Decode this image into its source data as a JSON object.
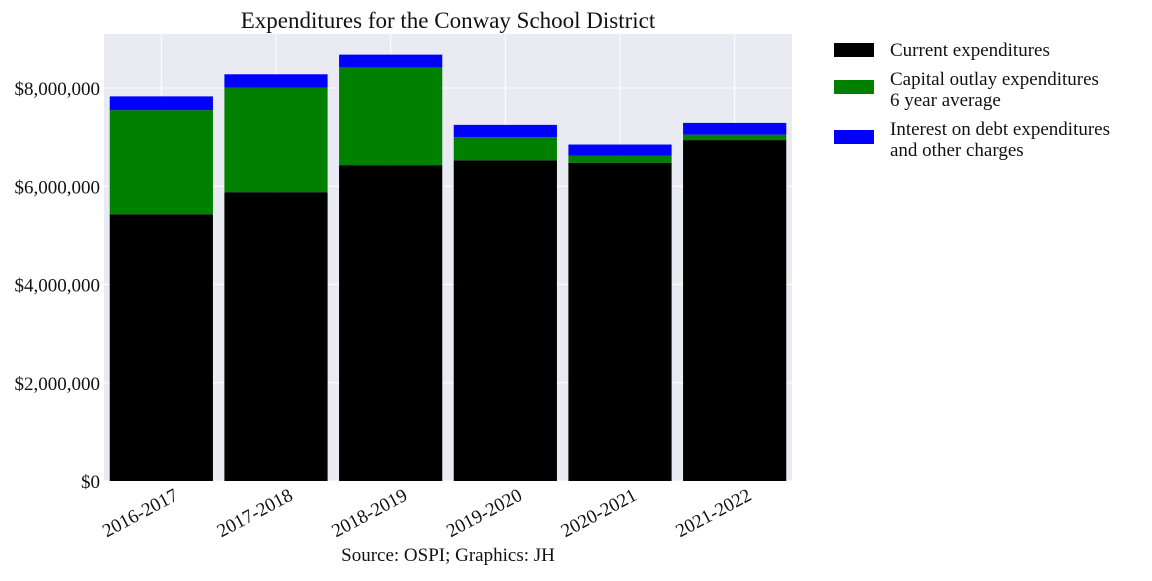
{
  "chart_data": {
    "type": "bar",
    "stacked": true,
    "title": "Expenditures for the Conway School District",
    "caption": "Source: OSPI; Graphics: JH",
    "xlabel": "",
    "ylabel": "",
    "categories": [
      "2016-2017",
      "2017-2018",
      "2018-2019",
      "2019-2020",
      "2020-2021",
      "2021-2022"
    ],
    "series": [
      {
        "name": "Current expenditures",
        "color": "#000000",
        "values": [
          5430000,
          5880000,
          6430000,
          6530000,
          6480000,
          6940000
        ]
      },
      {
        "name": "Capital outlay expenditures\n6 year average",
        "color": "#008000",
        "values": [
          2120000,
          2130000,
          1990000,
          470000,
          140000,
          110000
        ]
      },
      {
        "name": "Interest on debt expenditures\nand other charges",
        "color": "#0000ff",
        "values": [
          280000,
          270000,
          260000,
          250000,
          230000,
          240000
        ]
      }
    ],
    "ylim": [
      0,
      9100000
    ],
    "yticks": [
      0,
      2000000,
      4000000,
      6000000,
      8000000
    ],
    "ytick_labels": [
      "$0",
      "$2,000,000",
      "$4,000,000",
      "$6,000,000",
      "$8,000,000"
    ],
    "grid": true,
    "legend_position": "outside-right",
    "plot_background": "#eaeaf2",
    "grid_color": "#ffffff"
  }
}
